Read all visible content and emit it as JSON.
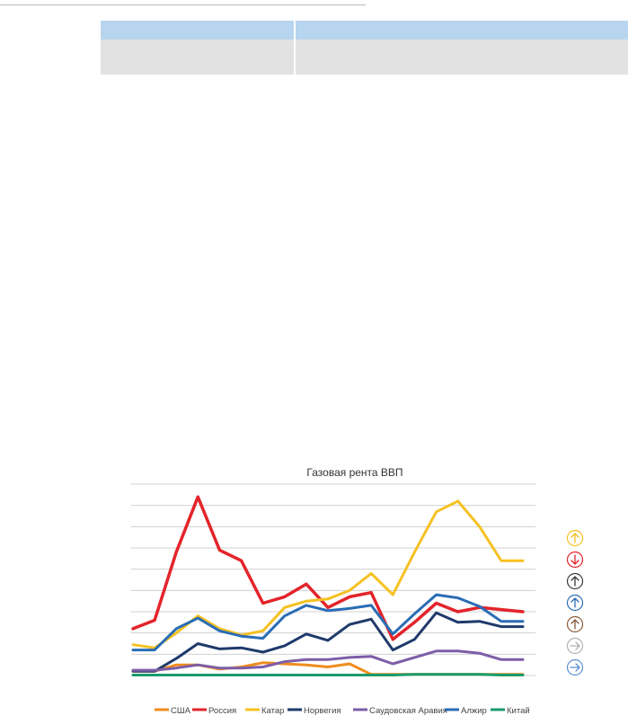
{
  "chart_data": {
    "type": "line",
    "title": "Газовая рента ВВП",
    "x": [
      "1",
      "2",
      "3",
      "4",
      "5",
      "6",
      "7",
      "8",
      "9",
      "10",
      "11",
      "12",
      "13",
      "14",
      "15",
      "16",
      "17",
      "18",
      "19"
    ],
    "ylim": [
      0,
      9
    ],
    "grid": true,
    "legend_position": "bottom",
    "series": [
      {
        "name": "США",
        "color": "#f08c1e",
        "values": [
          0.2,
          0.2,
          0.5,
          0.5,
          0.3,
          0.4,
          0.6,
          0.55,
          0.5,
          0.4,
          0.55,
          0.05,
          0.05,
          0.05,
          0.05,
          0.05,
          0.05,
          0.05,
          0.05
        ]
      },
      {
        "name": "Россия",
        "color": "#e3242b",
        "values": [
          2.2,
          2.6,
          5.8,
          8.4,
          5.9,
          5.4,
          3.4,
          3.7,
          4.3,
          3.2,
          3.7,
          3.9,
          1.7,
          2.5,
          3.4,
          3.0,
          3.2,
          3.1,
          3.0
        ]
      },
      {
        "name": "Катар",
        "color": "#f6c122",
        "values": [
          1.45,
          1.3,
          2.0,
          2.8,
          2.2,
          1.9,
          2.1,
          3.2,
          3.5,
          3.6,
          4.0,
          4.8,
          3.8,
          5.8,
          7.7,
          8.2,
          7.0,
          5.4,
          5.4
        ]
      },
      {
        "name": "Норвегия",
        "color": "#1f3a6b",
        "values": [
          0.2,
          0.2,
          0.8,
          1.5,
          1.25,
          1.3,
          1.1,
          1.4,
          1.95,
          1.65,
          2.4,
          2.65,
          1.2,
          1.7,
          2.95,
          2.5,
          2.55,
          2.3,
          2.3
        ]
      },
      {
        "name": "Саудовская Аравия",
        "color": "#7d5ea8",
        "values": [
          0.25,
          0.25,
          0.35,
          0.5,
          0.35,
          0.35,
          0.4,
          0.65,
          0.75,
          0.75,
          0.85,
          0.9,
          0.55,
          0.85,
          1.15,
          1.15,
          1.05,
          0.75,
          0.75
        ]
      },
      {
        "name": "Алжир",
        "color": "#2a6db5",
        "values": [
          1.2,
          1.2,
          2.2,
          2.7,
          2.1,
          1.85,
          1.75,
          2.8,
          3.3,
          3.05,
          3.15,
          3.3,
          1.95,
          2.9,
          3.8,
          3.65,
          3.25,
          2.55,
          2.55
        ]
      },
      {
        "name": "Китай",
        "color": "#1a9b6b",
        "values": [
          0.02,
          0.02,
          0.02,
          0.02,
          0.02,
          0.02,
          0.02,
          0.02,
          0.02,
          0.02,
          0.02,
          0.02,
          0.02,
          0.05,
          0.05,
          0.05,
          0.05,
          0.02,
          0.02
        ]
      }
    ],
    "trend_icons": [
      {
        "name": "arrow-up-icon",
        "color": "#f6c122"
      },
      {
        "name": "arrow-down-icon",
        "color": "#e3242b"
      },
      {
        "name": "arrow-up-icon",
        "color": "#3a3a3a"
      },
      {
        "name": "arrow-up-icon",
        "color": "#2a6db5"
      },
      {
        "name": "arrow-up-icon",
        "color": "#8a5a3a"
      },
      {
        "name": "arrow-right-icon",
        "color": "#b0b0b0"
      },
      {
        "name": "arrow-right-icon",
        "color": "#5b8fd0"
      }
    ]
  }
}
